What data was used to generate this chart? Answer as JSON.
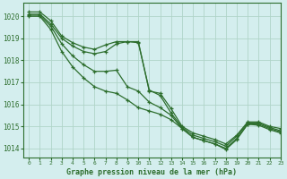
{
  "background_color": "#d4eeee",
  "grid_color": "#b0d4c8",
  "line_color": "#2d6e2d",
  "marker_color": "#2d6e2d",
  "title": "Graphe pression niveau de la mer (hPa)",
  "xlim": [
    -0.5,
    23
  ],
  "ylim": [
    1013.6,
    1020.6
  ],
  "yticks": [
    1014,
    1015,
    1016,
    1017,
    1018,
    1019,
    1020
  ],
  "xticks": [
    0,
    1,
    2,
    3,
    4,
    5,
    6,
    7,
    8,
    9,
    10,
    11,
    12,
    13,
    14,
    15,
    16,
    17,
    18,
    19,
    20,
    21,
    22,
    23
  ],
  "series": [
    [
      1020.2,
      1020.2,
      1019.8,
      1019.1,
      1018.8,
      1018.6,
      1018.5,
      1018.7,
      1018.85,
      1018.85,
      1018.85,
      1016.6,
      1016.5,
      1015.8,
      1015.0,
      1014.7,
      1014.55,
      1014.4,
      1014.2,
      1014.6,
      1015.2,
      1015.2,
      1015.0,
      1014.9
    ],
    [
      1020.1,
      1020.1,
      1019.65,
      1019.0,
      1018.65,
      1018.4,
      1018.3,
      1018.4,
      1018.75,
      1018.85,
      1018.8,
      1016.65,
      1016.4,
      1015.6,
      1014.95,
      1014.6,
      1014.45,
      1014.3,
      1014.1,
      1014.55,
      1015.15,
      1015.15,
      1014.95,
      1014.8
    ],
    [
      1020.05,
      1020.05,
      1019.55,
      1018.75,
      1018.2,
      1017.8,
      1017.5,
      1017.5,
      1017.55,
      1016.8,
      1016.6,
      1016.1,
      1015.85,
      1015.5,
      1014.9,
      1014.5,
      1014.35,
      1014.2,
      1014.0,
      1014.45,
      1015.1,
      1015.1,
      1014.9,
      1014.75
    ],
    [
      1020.0,
      1020.0,
      1019.4,
      1018.4,
      1017.7,
      1017.2,
      1016.8,
      1016.6,
      1016.5,
      1016.2,
      1015.85,
      1015.7,
      1015.55,
      1015.3,
      1014.9,
      1014.5,
      1014.35,
      1014.2,
      1013.95,
      1014.4,
      1015.1,
      1015.05,
      1014.85,
      1014.7
    ]
  ]
}
